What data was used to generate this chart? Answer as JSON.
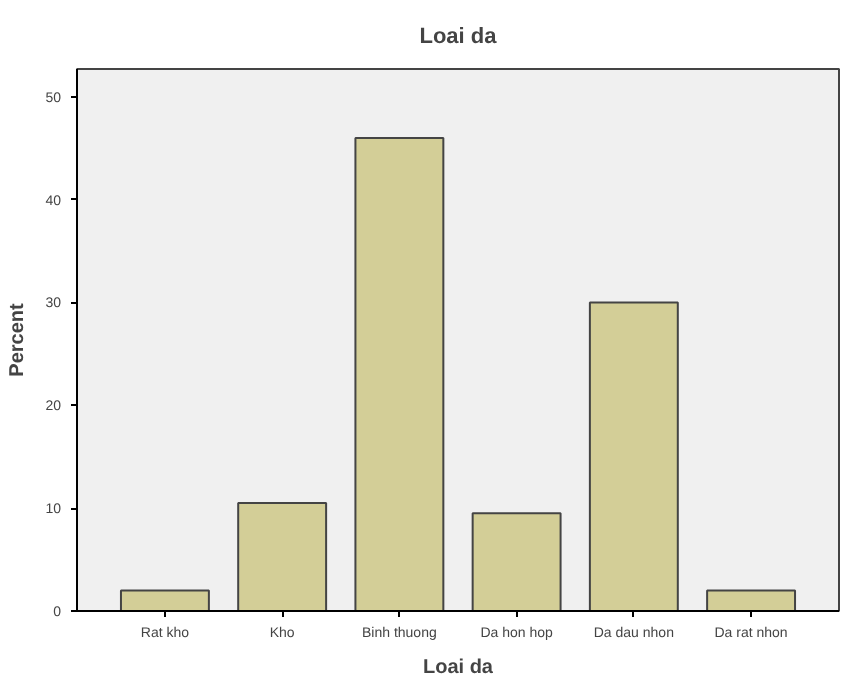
{
  "chart_data": {
    "type": "bar",
    "title": "Loai da",
    "xlabel": "Loai da",
    "ylabel": "Percent",
    "categories": [
      "Rat kho",
      "Kho",
      "Binh thuong",
      "Da hon hop",
      "Da dau nhon",
      "Da rat nhon"
    ],
    "values": [
      2,
      10.5,
      46,
      9.5,
      30,
      2
    ],
    "color": "#d3ce97",
    "ylim": [
      0,
      52.7
    ],
    "yticks": [
      0,
      10,
      20,
      30,
      40,
      50
    ],
    "grid": false
  }
}
